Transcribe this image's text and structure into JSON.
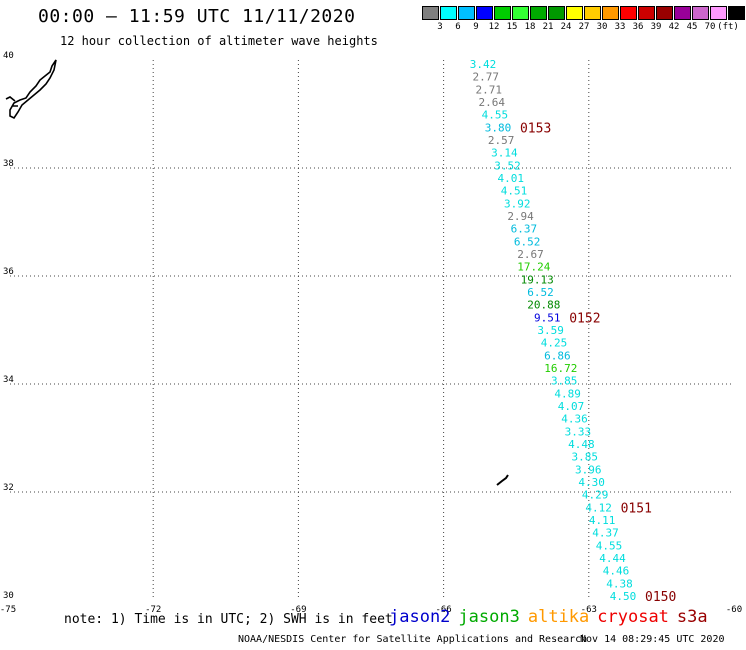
{
  "header": {
    "title": "00:00 – 11:59 UTC 11/11/2020",
    "subtitle": "12 hour collection of altimeter wave heights"
  },
  "colorbar": {
    "colors": [
      "#7f7f7f",
      "#00ffff",
      "#00bfff",
      "#0000ff",
      "#00cc00",
      "#33ff33",
      "#00aa00",
      "#009900",
      "#ffff00",
      "#ffcc00",
      "#ff9900",
      "#ff0000",
      "#cc0000",
      "#990000",
      "#990099",
      "#cc66cc",
      "#ff99ff",
      "#000000"
    ],
    "labels": [
      "3",
      "6",
      "9",
      "12",
      "15",
      "18",
      "21",
      "24",
      "27",
      "30",
      "33",
      "36",
      "39",
      "42",
      "45",
      "70",
      "(ft)"
    ]
  },
  "map": {
    "lon_labels": [
      "-75",
      "-72",
      "-69",
      "-66",
      "-63",
      "-60"
    ],
    "lat_labels": [
      "40",
      "38",
      "36",
      "34",
      "32",
      "30"
    ],
    "lon_range": [
      -75,
      -60
    ],
    "lat_range": [
      30,
      40
    ],
    "grid": true
  },
  "measurements": [
    {
      "v": "3.42",
      "c": "#00dddd"
    },
    {
      "v": "2.77",
      "c": "#777777"
    },
    {
      "v": "2.71",
      "c": "#777777"
    },
    {
      "v": "2.64",
      "c": "#777777"
    },
    {
      "v": "4.55",
      "c": "#00dddd"
    },
    {
      "v": "3.80",
      "c": "#00bbdd"
    },
    {
      "v": "2.57",
      "c": "#777777"
    },
    {
      "v": "3.14",
      "c": "#00dddd"
    },
    {
      "v": "3.52",
      "c": "#00dddd"
    },
    {
      "v": "4.01",
      "c": "#00dddd"
    },
    {
      "v": "4.51",
      "c": "#00dddd"
    },
    {
      "v": "3.92",
      "c": "#00dddd"
    },
    {
      "v": "2.94",
      "c": "#777777"
    },
    {
      "v": "6.37",
      "c": "#00bbdd"
    },
    {
      "v": "6.52",
      "c": "#00bbdd"
    },
    {
      "v": "2.67",
      "c": "#777777"
    },
    {
      "v": "17.24",
      "c": "#22cc00"
    },
    {
      "v": "19.13",
      "c": "#008800"
    },
    {
      "v": "6.52",
      "c": "#00bbdd"
    },
    {
      "v": "20.88",
      "c": "#008800"
    },
    {
      "v": "9.51",
      "c": "#0000dd"
    },
    {
      "v": "3.59",
      "c": "#00dddd"
    },
    {
      "v": "4.25",
      "c": "#00dddd"
    },
    {
      "v": "6.86",
      "c": "#00bbdd"
    },
    {
      "v": "16.72",
      "c": "#22cc00"
    },
    {
      "v": "3.85",
      "c": "#00dddd"
    },
    {
      "v": "4.89",
      "c": "#00dddd"
    },
    {
      "v": "4.07",
      "c": "#00dddd"
    },
    {
      "v": "4.36",
      "c": "#00dddd"
    },
    {
      "v": "3.33",
      "c": "#00dddd"
    },
    {
      "v": "4.48",
      "c": "#00dddd"
    },
    {
      "v": "3.85",
      "c": "#00dddd"
    },
    {
      "v": "3.96",
      "c": "#00dddd"
    },
    {
      "v": "4.30",
      "c": "#00dddd"
    },
    {
      "v": "4.29",
      "c": "#00dddd"
    },
    {
      "v": "4.12",
      "c": "#00dddd"
    },
    {
      "v": "4.11",
      "c": "#00dddd"
    },
    {
      "v": "4.37",
      "c": "#00dddd"
    },
    {
      "v": "4.55",
      "c": "#00dddd"
    },
    {
      "v": "4.44",
      "c": "#00dddd"
    },
    {
      "v": "4.46",
      "c": "#00dddd"
    },
    {
      "v": "4.38",
      "c": "#00dddd"
    },
    {
      "v": "4.50",
      "c": "#00dddd"
    }
  ],
  "pass_labels": [
    {
      "text": "0153",
      "after": 5
    },
    {
      "text": "0152",
      "after": 20
    },
    {
      "text": "0151",
      "after": 35
    },
    {
      "text": "0150",
      "after": 42
    }
  ],
  "pass_label_color": "#880000",
  "note": "note: 1) Time is in UTC; 2) SWH is in feet",
  "legend": [
    {
      "name": "jason2",
      "color": "#0000cc"
    },
    {
      "name": "jason3",
      "color": "#00aa00"
    },
    {
      "name": "altika",
      "color": "#ff9900"
    },
    {
      "name": "cryosat",
      "color": "#ee0000"
    },
    {
      "name": "s3a",
      "color": "#990000"
    }
  ],
  "footer": {
    "credit": "NOAA/NESDIS Center for Satellite Applications and Research",
    "timestamp": "Nov 14 08:29:45 UTC 2020"
  }
}
